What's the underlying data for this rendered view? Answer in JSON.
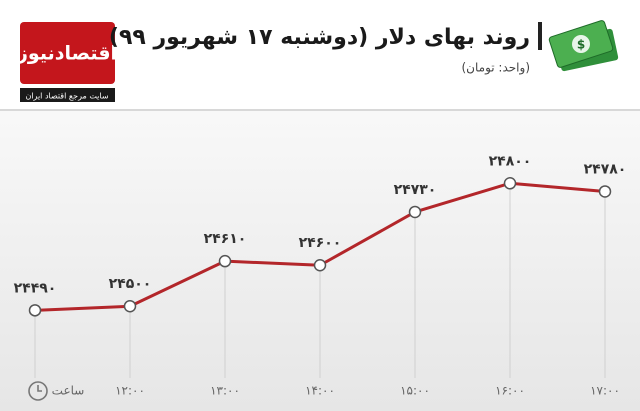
{
  "brand": {
    "name": "اقتصادنیوز",
    "tagline": "سایت مرجع اقتصاد ایران"
  },
  "chart_data": {
    "type": "line",
    "title": "روند بهای دلار (دوشنبه ۱۷ شهریور ۹۹)",
    "subtitle": "(واحد: تومان)",
    "x_label": "ساعت",
    "categories": [
      null,
      "۱۲:۰۰",
      "۱۳:۰۰",
      "۱۴:۰۰",
      "۱۵:۰۰",
      "۱۶:۰۰",
      "۱۷:۰۰"
    ],
    "values": [
      24490,
      24500,
      24610,
      24600,
      24730,
      24800,
      24780
    ],
    "value_labels": [
      "۲۴۴۹۰",
      "۲۴۵۰۰",
      "۲۴۶۱۰",
      "۲۴۶۰۰",
      "۲۴۷۳۰",
      "۲۴۸۰۰",
      "۲۴۷۸۰"
    ],
    "color": "#b3262a",
    "ylim": [
      24320,
      24930
    ]
  }
}
